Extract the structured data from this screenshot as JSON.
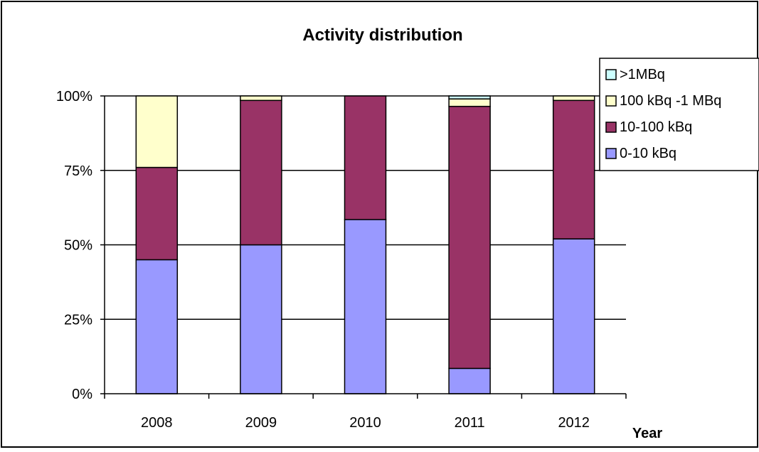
{
  "chart_data": {
    "type": "bar",
    "stacked": "percent",
    "title": "Activity distribution",
    "xlabel": "Year",
    "ylabel": "",
    "categories": [
      "2008",
      "2009",
      "2010",
      "2011",
      "2012"
    ],
    "ylim": [
      0,
      100
    ],
    "yticks": [
      0,
      25,
      50,
      75,
      100
    ],
    "ytick_labels": [
      "0%",
      "25%",
      "50%",
      "75%",
      "100%"
    ],
    "grid": true,
    "legend_position": "top-right",
    "series": [
      {
        "name": "0-10 kBq",
        "color": "#9999ff",
        "values": [
          45,
          50,
          58.5,
          8.5,
          52
        ]
      },
      {
        "name": "10-100 kBq",
        "color": "#993366",
        "values": [
          31,
          48.5,
          41.5,
          88,
          46.5
        ]
      },
      {
        "name": "100 kBq -1 MBq",
        "color": "#ffffcc",
        "values": [
          24,
          1.5,
          0,
          2.5,
          1.5
        ]
      },
      {
        "name": ">1MBq",
        "color": "#ccffff",
        "values": [
          0,
          0,
          0,
          1,
          0
        ]
      }
    ]
  }
}
